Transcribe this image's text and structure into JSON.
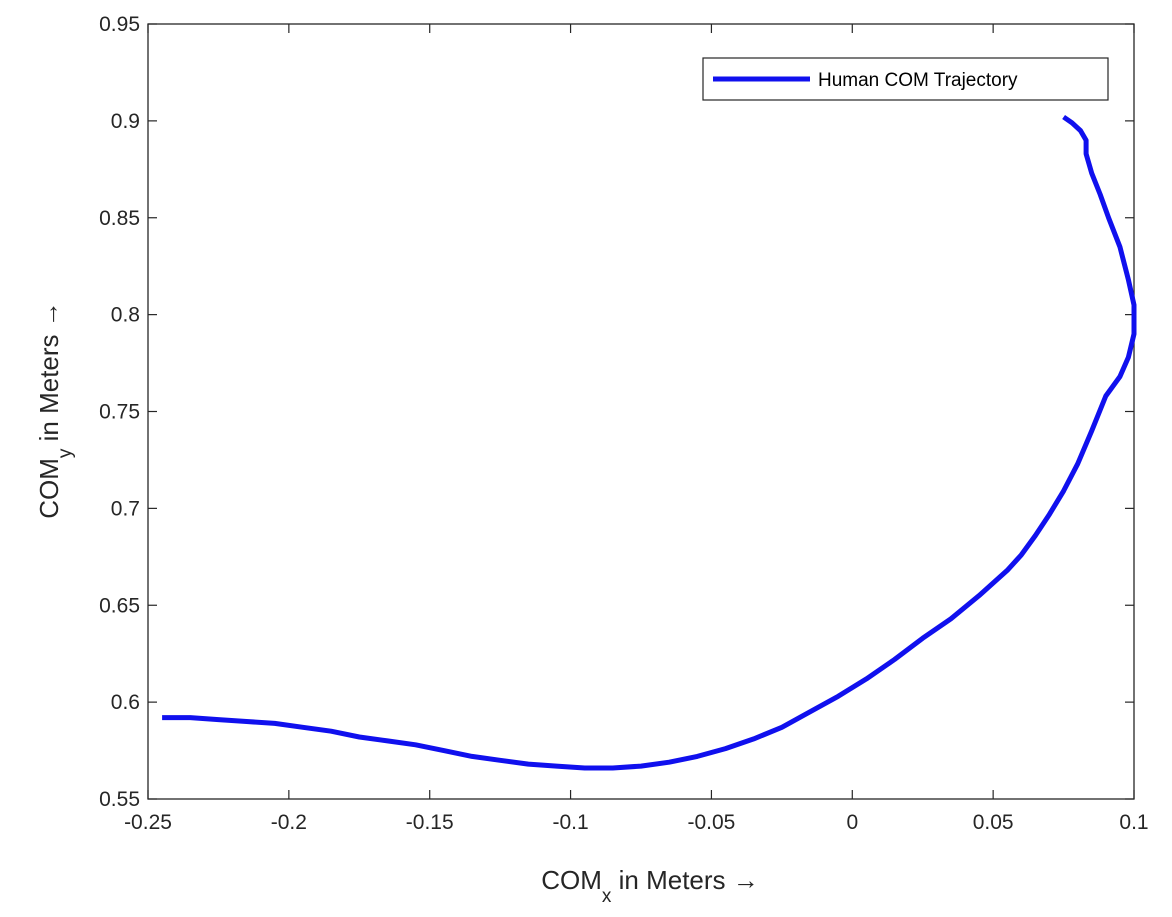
{
  "chart_data": {
    "type": "line",
    "xlabel": {
      "base": "COM",
      "sub": "x",
      "rest": " in Meters →"
    },
    "ylabel": {
      "base": "COM",
      "sub": "y",
      "rest": " in Meters →"
    },
    "xlim": [
      -0.25,
      0.1
    ],
    "ylim": [
      0.55,
      0.95
    ],
    "xticks": [
      -0.25,
      -0.2,
      -0.15,
      -0.1,
      -0.05,
      0,
      0.05,
      0.1
    ],
    "xtick_labels": [
      "-0.25",
      "-0.2",
      "-0.15",
      "-0.1",
      "-0.05",
      "0",
      "0.05",
      "0.1"
    ],
    "yticks": [
      0.55,
      0.6,
      0.65,
      0.7,
      0.75,
      0.8,
      0.85,
      0.9,
      0.95
    ],
    "ytick_labels": [
      "0.55",
      "0.6",
      "0.65",
      "0.7",
      "0.75",
      "0.8",
      "0.85",
      "0.9",
      "0.95"
    ],
    "grid": false,
    "legend_position": "top-right",
    "series": [
      {
        "name": "Human COM Trajectory",
        "color": "#1010ee",
        "x": [
          -0.245,
          -0.235,
          -0.225,
          -0.215,
          -0.205,
          -0.195,
          -0.185,
          -0.175,
          -0.165,
          -0.155,
          -0.145,
          -0.135,
          -0.125,
          -0.115,
          -0.105,
          -0.095,
          -0.085,
          -0.075,
          -0.065,
          -0.055,
          -0.045,
          -0.035,
          -0.025,
          -0.015,
          -0.005,
          0.005,
          0.015,
          0.025,
          0.035,
          0.045,
          0.055,
          0.06,
          0.065,
          0.07,
          0.075,
          0.08,
          0.085,
          0.09,
          0.095,
          0.098,
          0.1,
          0.1,
          0.098,
          0.095,
          0.091,
          0.088,
          0.085,
          0.083,
          0.083,
          0.081,
          0.078,
          0.075
        ],
        "y": [
          0.592,
          0.592,
          0.591,
          0.59,
          0.589,
          0.587,
          0.585,
          0.582,
          0.58,
          0.578,
          0.575,
          0.572,
          0.57,
          0.568,
          0.567,
          0.566,
          0.566,
          0.567,
          0.569,
          0.572,
          0.576,
          0.581,
          0.587,
          0.595,
          0.603,
          0.612,
          0.622,
          0.633,
          0.643,
          0.655,
          0.668,
          0.676,
          0.686,
          0.697,
          0.709,
          0.723,
          0.74,
          0.758,
          0.768,
          0.778,
          0.79,
          0.805,
          0.818,
          0.835,
          0.85,
          0.862,
          0.873,
          0.883,
          0.89,
          0.895,
          0.899,
          0.902
        ]
      }
    ]
  }
}
